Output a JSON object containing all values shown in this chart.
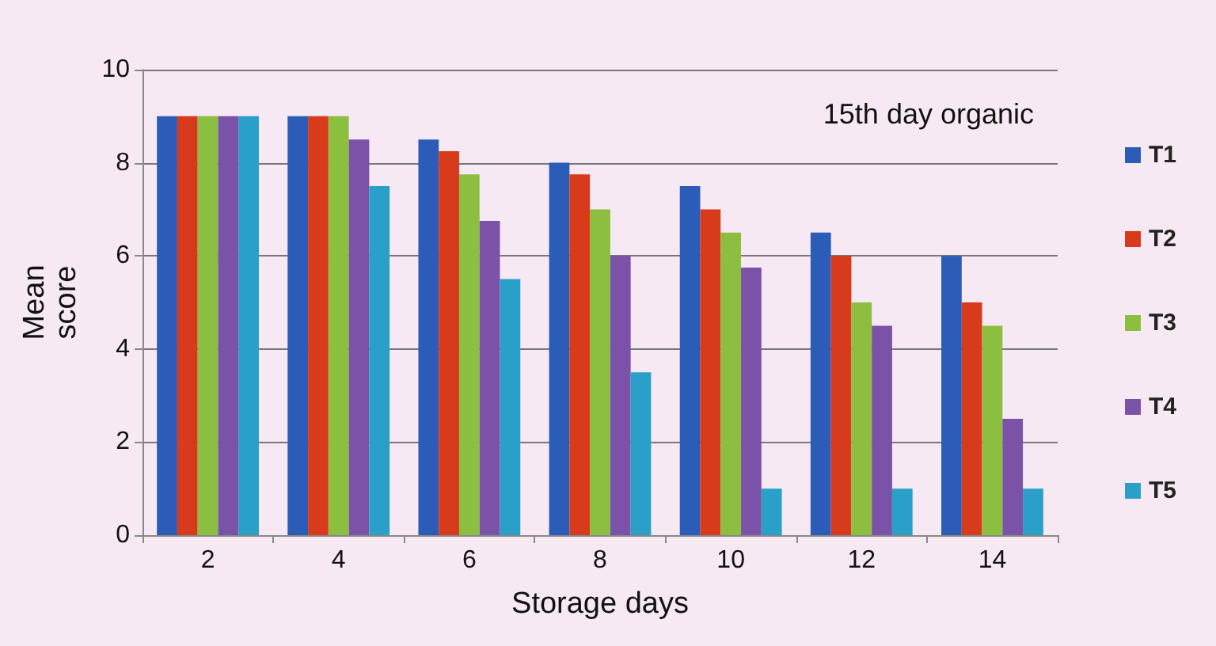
{
  "chart_data": {
    "type": "bar",
    "title": "15th day organic",
    "xlabel": "Storage days",
    "ylabel": "Mean\nscore",
    "categories": [
      "2",
      "4",
      "6",
      "8",
      "10",
      "12",
      "14"
    ],
    "series": [
      {
        "name": "T1",
        "color": "#2a5cb8",
        "values": [
          9,
          9,
          8.5,
          8,
          7.5,
          6.5,
          6
        ]
      },
      {
        "name": "T2",
        "color": "#d83a1c",
        "values": [
          9,
          9,
          8.25,
          7.75,
          7,
          6,
          5
        ]
      },
      {
        "name": "T3",
        "color": "#8cbf3f",
        "values": [
          9,
          9,
          7.75,
          7,
          6.5,
          5,
          4.5
        ]
      },
      {
        "name": "T4",
        "color": "#7a52a8",
        "values": [
          9,
          8.5,
          6.75,
          6,
          5.75,
          4.5,
          2.5
        ]
      },
      {
        "name": "T5",
        "color": "#2aa0c8",
        "values": [
          9,
          7.5,
          5.5,
          3.5,
          1,
          1,
          1
        ]
      }
    ],
    "ylim": [
      0,
      10
    ],
    "yticks": [
      0,
      2,
      4,
      6,
      8,
      10
    ],
    "grid": "y",
    "legend": "right"
  }
}
